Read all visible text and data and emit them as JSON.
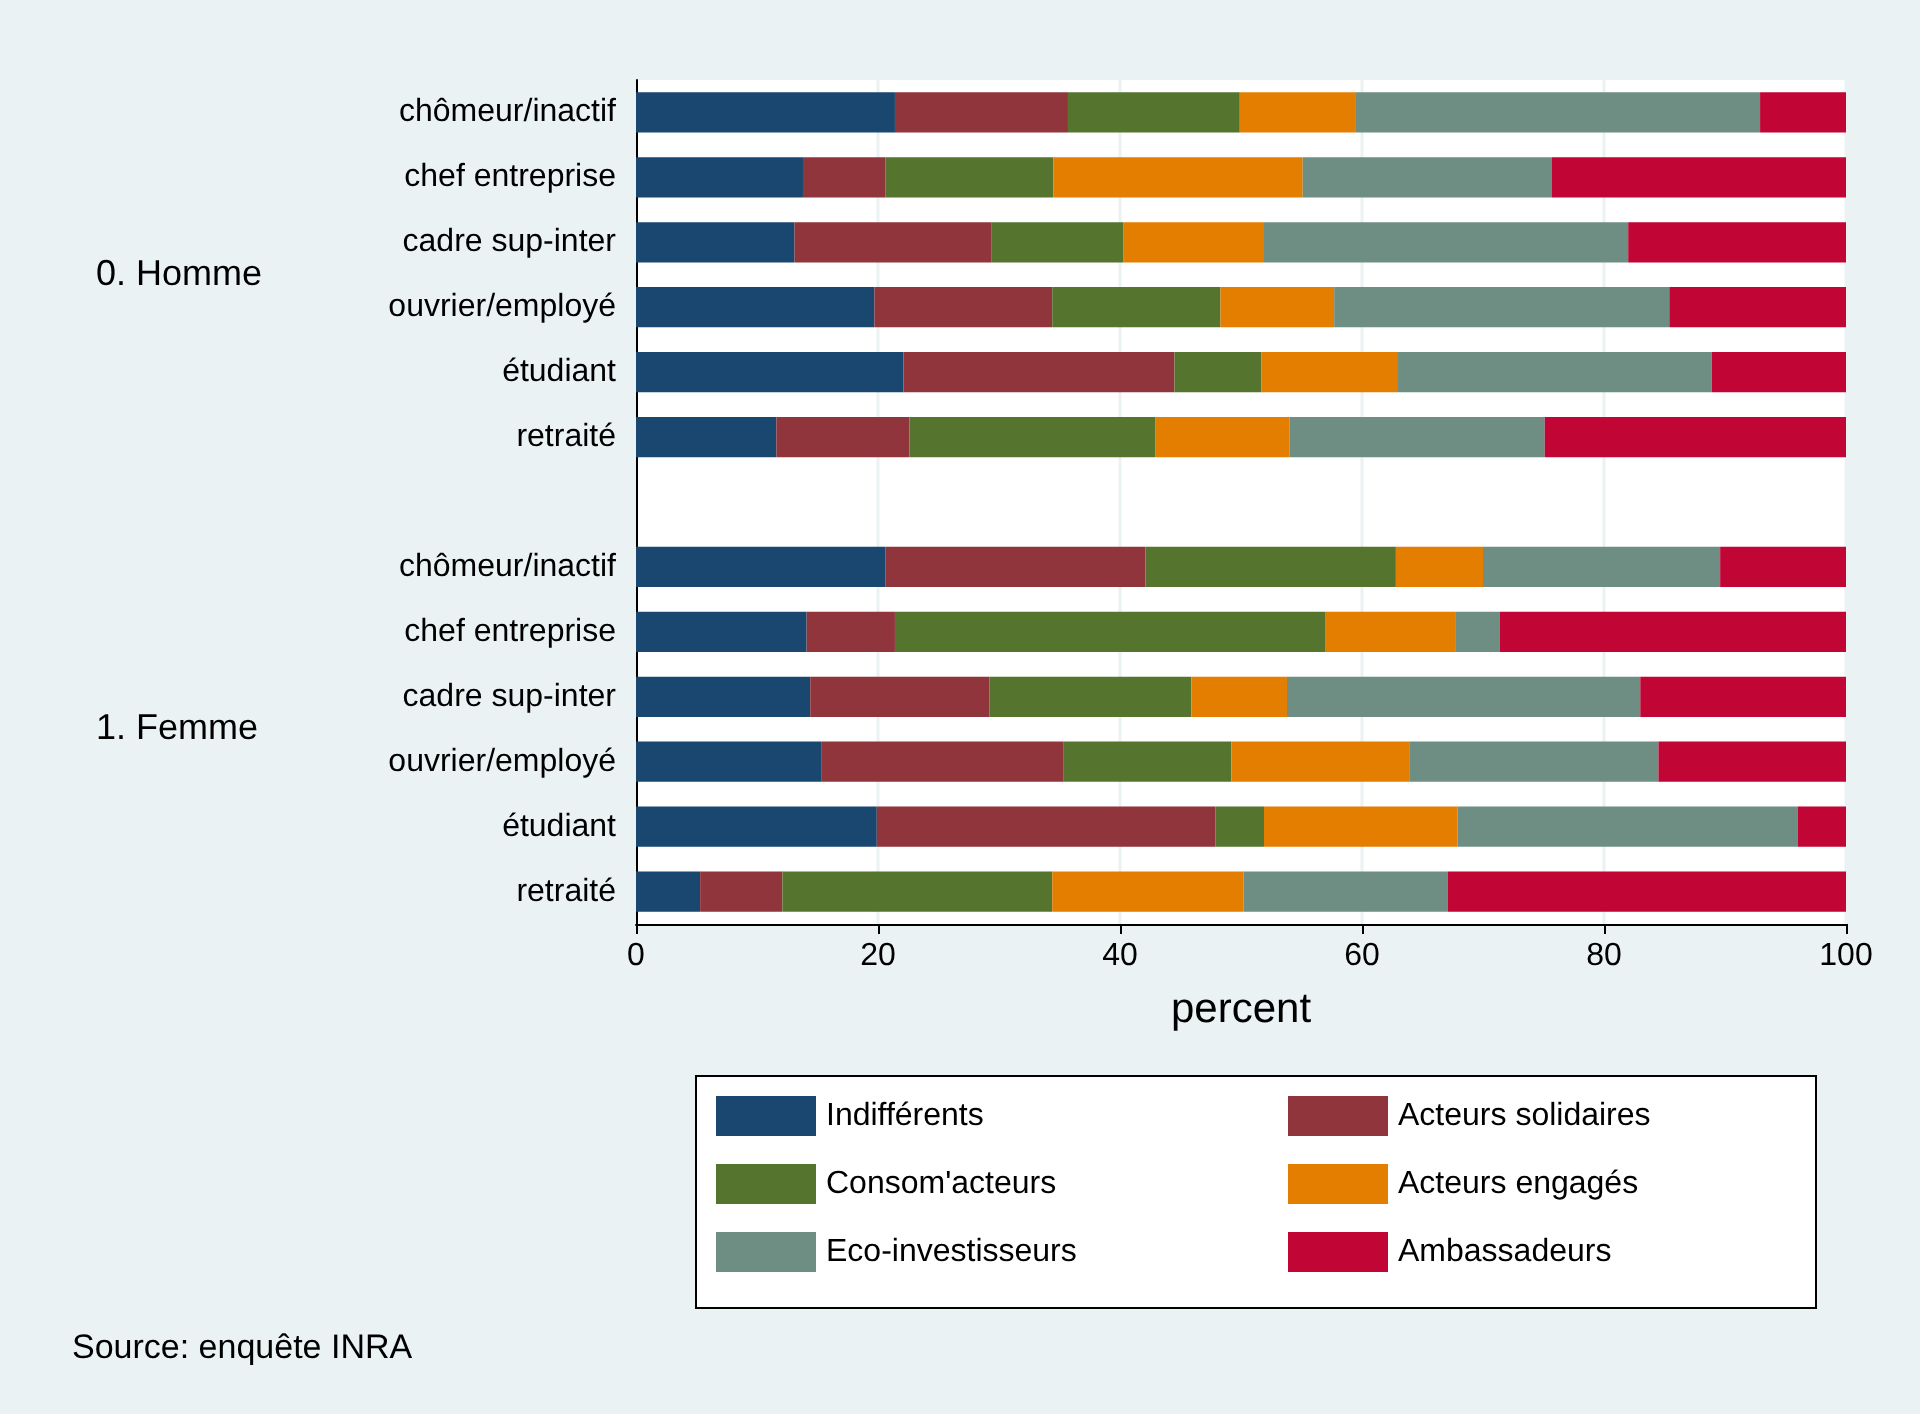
{
  "chart_data": {
    "type": "bar",
    "orientation": "horizontal",
    "stacked": true,
    "categories": [
      "chômeur/inactif",
      "chef entreprise",
      "cadre sup-inter",
      "ouvrier/employé",
      "étudiant",
      "retraité",
      null,
      "chômeur/inactif",
      "chef entreprise",
      "cadre sup-inter",
      "ouvrier/employé",
      "étudiant",
      "retraité"
    ],
    "series": [
      {
        "name": "Indifférents",
        "color": "#1a476f",
        "values": [
          21.4,
          13.8,
          13.1,
          19.7,
          22.1,
          11.6,
          null,
          20.6,
          14.1,
          14.4,
          15.3,
          19.9,
          5.3
        ]
      },
      {
        "name": "Acteurs solidaires",
        "color": "#90353b",
        "values": [
          14.3,
          6.8,
          16.3,
          14.7,
          22.4,
          11.0,
          null,
          21.5,
          7.3,
          14.8,
          20.0,
          28.0,
          6.8
        ]
      },
      {
        "name": "Consom'acteurs",
        "color": "#55752f",
        "values": [
          14.2,
          13.9,
          10.9,
          13.9,
          7.2,
          20.3,
          null,
          20.7,
          35.6,
          16.7,
          13.9,
          4.0,
          22.3
        ]
      },
      {
        "name": "Acteurs engagés",
        "color": "#e37e00",
        "values": [
          9.6,
          20.6,
          11.6,
          9.4,
          11.2,
          11.1,
          null,
          7.2,
          10.7,
          7.9,
          14.7,
          16.0,
          15.8
        ]
      },
      {
        "name": "Eco-investisseurs",
        "color": "#6e8e84",
        "values": [
          33.4,
          20.6,
          30.1,
          27.7,
          26.0,
          21.1,
          null,
          19.6,
          3.7,
          29.2,
          20.6,
          28.1,
          16.9
        ]
      },
      {
        "name": "Ambassadeurs",
        "color": "#c10534",
        "values": [
          7.1,
          24.3,
          18.0,
          14.6,
          11.1,
          24.9,
          null,
          10.4,
          28.6,
          17.0,
          15.5,
          4.0,
          32.9
        ]
      }
    ],
    "xlabel": "percent",
    "xlim": [
      0,
      100
    ],
    "xticks": [
      0,
      20,
      40,
      60,
      80,
      100
    ],
    "grid": "x",
    "legend": "bottom",
    "annotations": [
      "0. Homme",
      "1. Femme",
      "Source: enquête INRA"
    ]
  }
}
